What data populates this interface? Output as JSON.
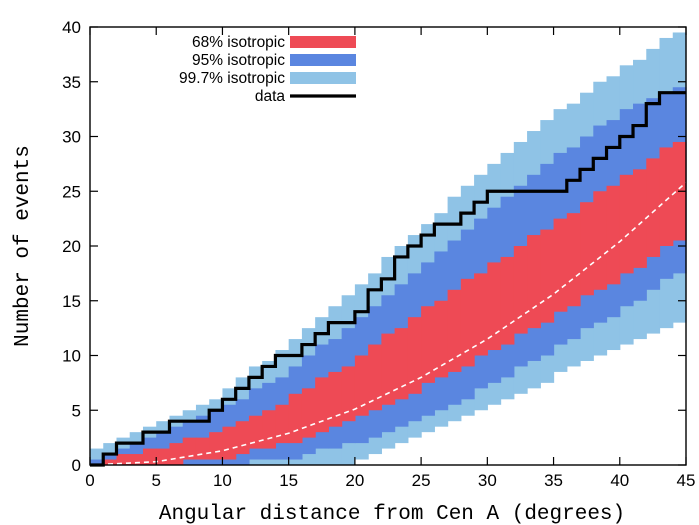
{
  "chart_data": {
    "type": "area",
    "title": "",
    "xlabel": "Angular distance from Cen A  (degrees)",
    "ylabel": "Number of events",
    "xlim": [
      0,
      45
    ],
    "ylim": [
      0,
      40
    ],
    "xticks": [
      0,
      5,
      10,
      15,
      20,
      25,
      30,
      35,
      40,
      45
    ],
    "yticks": [
      0,
      5,
      10,
      15,
      20,
      25,
      30,
      35,
      40
    ],
    "x": [
      0,
      5,
      10,
      15,
      20,
      25,
      30,
      35,
      40,
      45
    ],
    "series": [
      {
        "name": "99.7% isotropic",
        "kind": "band",
        "color": "#8fc3e6",
        "lower": [
          0,
          0,
          0,
          0,
          0.2,
          2.5,
          5,
          8,
          11,
          13
        ],
        "upper": [
          1,
          3.5,
          6.5,
          11,
          16,
          21.5,
          27,
          32,
          36,
          40
        ]
      },
      {
        "name": "95% isotropic",
        "kind": "band",
        "color": "#5a86e0",
        "lower": [
          0,
          0,
          0,
          0.5,
          2,
          4,
          7.2,
          10.5,
          14,
          18
        ],
        "upper": [
          0.5,
          2.5,
          5,
          8.5,
          13,
          18,
          23,
          28,
          32,
          35
        ]
      },
      {
        "name": "68% isotropic",
        "kind": "band",
        "color": "#ee4a55",
        "lower": [
          0,
          0,
          0.5,
          2,
          4,
          7,
          10.2,
          13.5,
          17,
          21
        ],
        "upper": [
          0,
          1.5,
          3,
          6,
          9.5,
          14,
          18,
          22,
          26,
          30
        ]
      },
      {
        "name": "",
        "kind": "expected",
        "color": "#ffffff",
        "y": [
          0,
          0.3,
          1.3,
          2.9,
          5.1,
          8,
          11.5,
          15.6,
          20.4,
          25.8
        ]
      },
      {
        "name": "data",
        "kind": "step",
        "color": "#000000",
        "x": [
          0,
          1,
          1,
          2,
          2,
          4,
          4,
          6,
          6,
          7,
          7,
          9,
          9,
          10,
          10,
          11,
          11,
          12,
          12,
          13,
          13,
          14,
          14,
          16,
          16,
          17,
          17,
          18,
          18,
          20,
          20,
          21,
          21,
          22,
          22,
          23,
          23,
          24,
          24,
          25,
          25,
          26,
          26,
          27,
          27,
          28,
          28,
          29,
          29,
          30,
          30,
          36,
          36,
          37,
          37,
          38,
          38,
          39,
          39,
          40,
          40,
          41,
          41,
          42,
          42,
          43,
          43,
          44,
          44,
          45
        ],
        "y": [
          0,
          0,
          1,
          1,
          2,
          2,
          3,
          3,
          4,
          4,
          4,
          4,
          5,
          5,
          6,
          6,
          7,
          7,
          8,
          8,
          9,
          9,
          10,
          10,
          11,
          11,
          12,
          12,
          13,
          13,
          14,
          14,
          16,
          16,
          17,
          17,
          19,
          19,
          20,
          20,
          21,
          21,
          22,
          22,
          22,
          22,
          23,
          23,
          24,
          24,
          25,
          25,
          26,
          26,
          27,
          27,
          28,
          28,
          29,
          29,
          30,
          30,
          31,
          31,
          33,
          33,
          34,
          34,
          34,
          34
        ]
      }
    ],
    "legend": {
      "position": "top-left",
      "entries": [
        {
          "label": "68% isotropic",
          "color": "#ee4a55",
          "kind": "band"
        },
        {
          "label": "95% isotropic",
          "color": "#5a86e0",
          "kind": "band"
        },
        {
          "label": "99.7% isotropic",
          "color": "#8fc3e6",
          "kind": "band"
        },
        {
          "label": "data",
          "color": "#000000",
          "kind": "line"
        }
      ]
    },
    "grid": false
  }
}
